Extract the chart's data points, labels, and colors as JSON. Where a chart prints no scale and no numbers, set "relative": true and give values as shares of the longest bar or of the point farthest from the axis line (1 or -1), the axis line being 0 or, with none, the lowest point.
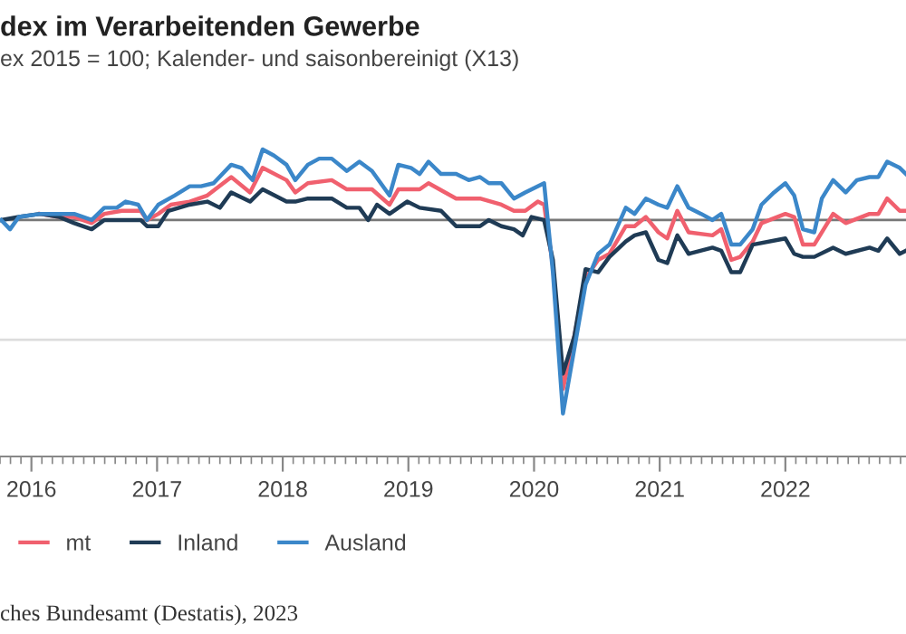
{
  "chart_data": {
    "type": "line",
    "title": "dex im Verarbeitenden Gewerbe",
    "subtitle": "ex 2015 = 100; Kalender- und saisonbereinigt (X13)",
    "relative": true,
    "xlim": [
      2015.75,
      2022.96
    ],
    "xticks": [
      2016,
      2017,
      2018,
      2019,
      2020,
      2021,
      2022
    ],
    "grid": false,
    "legend": "bottom",
    "line_style": "solid",
    "marker": "none",
    "ref_lines": [
      {
        "axis": "y",
        "value": 0.77,
        "color": "#777777"
      },
      {
        "axis": "y",
        "value": 0.38,
        "color": "#dddddd"
      }
    ],
    "annotations": [
      "ches Bundesamt (Destatis), 2023"
    ],
    "series": [
      {
        "name": "mt",
        "color": "#f0606e",
        "x": [
          2016.07,
          2016.22,
          2016.34,
          2016.48,
          2016.58,
          2016.72,
          2016.87,
          2016.92,
          2017.01,
          2017.11,
          2017.26,
          2017.4,
          2017.59,
          2017.74,
          2017.84,
          2018.03,
          2018.1,
          2018.2,
          2018.39,
          2018.51,
          2018.71,
          2018.85,
          2018.92,
          2019.09,
          2019.16,
          2019.38,
          2019.57,
          2019.74,
          2019.84,
          2019.93,
          2020.03,
          2020.08,
          2020.15,
          2020.23,
          2020.32,
          2020.41,
          2020.51,
          2020.6,
          2020.73,
          2020.8,
          2020.89,
          2020.99,
          2021.06,
          2021.14,
          2021.23,
          2021.42,
          2021.49,
          2021.57,
          2021.64,
          2021.74,
          2021.81,
          2022.0,
          2022.07,
          2022.14,
          2022.23,
          2022.38,
          2022.48,
          2022.67,
          2022.74,
          2022.81,
          2022.91,
          2022.96
        ],
        "values": [
          0.79,
          0.78,
          0.78,
          0.76,
          0.79,
          0.8,
          0.8,
          0.77,
          0.79,
          0.82,
          0.83,
          0.85,
          0.91,
          0.86,
          0.94,
          0.9,
          0.86,
          0.89,
          0.9,
          0.87,
          0.87,
          0.82,
          0.87,
          0.87,
          0.89,
          0.84,
          0.84,
          0.82,
          0.8,
          0.8,
          0.83,
          0.82,
          0.62,
          0.22,
          0.39,
          0.58,
          0.64,
          0.66,
          0.75,
          0.75,
          0.78,
          0.73,
          0.71,
          0.8,
          0.73,
          0.72,
          0.74,
          0.64,
          0.65,
          0.7,
          0.76,
          0.79,
          0.78,
          0.69,
          0.69,
          0.79,
          0.76,
          0.79,
          0.79,
          0.84,
          0.8,
          0.8
        ]
      },
      {
        "name": "Inland",
        "color": "#1f3b55",
        "x": [
          2015.76,
          2015.9,
          2016.07,
          2016.22,
          2016.34,
          2016.48,
          2016.58,
          2016.72,
          2016.87,
          2016.92,
          2017.01,
          2017.09,
          2017.26,
          2017.4,
          2017.5,
          2017.59,
          2017.74,
          2017.84,
          2018.03,
          2018.1,
          2018.2,
          2018.39,
          2018.51,
          2018.61,
          2018.68,
          2018.75,
          2018.85,
          2018.99,
          2019.09,
          2019.26,
          2019.38,
          2019.57,
          2019.64,
          2019.74,
          2019.84,
          2019.91,
          2019.98,
          2020.08,
          2020.15,
          2020.23,
          2020.32,
          2020.41,
          2020.51,
          2020.6,
          2020.73,
          2020.8,
          2020.89,
          2020.99,
          2021.06,
          2021.14,
          2021.23,
          2021.42,
          2021.49,
          2021.57,
          2021.64,
          2021.74,
          2022.0,
          2022.07,
          2022.14,
          2022.23,
          2022.38,
          2022.48,
          2022.67,
          2022.74,
          2022.81,
          2022.91,
          2022.96
        ],
        "values": [
          0.77,
          0.78,
          0.79,
          0.78,
          0.76,
          0.74,
          0.77,
          0.77,
          0.77,
          0.75,
          0.75,
          0.8,
          0.82,
          0.83,
          0.81,
          0.86,
          0.83,
          0.87,
          0.83,
          0.83,
          0.84,
          0.84,
          0.81,
          0.81,
          0.77,
          0.82,
          0.79,
          0.83,
          0.81,
          0.8,
          0.75,
          0.75,
          0.77,
          0.75,
          0.74,
          0.72,
          0.78,
          0.77,
          0.64,
          0.27,
          0.39,
          0.61,
          0.6,
          0.65,
          0.7,
          0.72,
          0.73,
          0.64,
          0.63,
          0.72,
          0.66,
          0.68,
          0.67,
          0.6,
          0.6,
          0.69,
          0.71,
          0.66,
          0.65,
          0.65,
          0.68,
          0.66,
          0.68,
          0.67,
          0.71,
          0.66,
          0.67
        ]
      },
      {
        "name": "Ausland",
        "color": "#3b87c9",
        "x": [
          2015.76,
          2015.83,
          2015.9,
          2016.07,
          2016.22,
          2016.34,
          2016.48,
          2016.58,
          2016.68,
          2016.75,
          2016.85,
          2016.92,
          2017.01,
          2017.14,
          2017.26,
          2017.35,
          2017.45,
          2017.59,
          2017.67,
          2017.76,
          2017.84,
          2017.93,
          2018.03,
          2018.1,
          2018.2,
          2018.29,
          2018.39,
          2018.51,
          2018.61,
          2018.71,
          2018.85,
          2018.92,
          2019.02,
          2019.09,
          2019.16,
          2019.26,
          2019.38,
          2019.48,
          2019.57,
          2019.64,
          2019.74,
          2019.84,
          2019.93,
          2020.08,
          2020.15,
          2020.23,
          2020.32,
          2020.41,
          2020.51,
          2020.6,
          2020.73,
          2020.8,
          2020.89,
          2020.99,
          2021.06,
          2021.14,
          2021.23,
          2021.33,
          2021.42,
          2021.49,
          2021.57,
          2021.64,
          2021.74,
          2021.81,
          2021.91,
          2022.0,
          2022.07,
          2022.14,
          2022.23,
          2022.29,
          2022.38,
          2022.48,
          2022.57,
          2022.67,
          2022.74,
          2022.81,
          2022.91,
          2022.96
        ],
        "values": [
          0.77,
          0.74,
          0.78,
          0.79,
          0.79,
          0.79,
          0.77,
          0.81,
          0.81,
          0.83,
          0.82,
          0.77,
          0.82,
          0.85,
          0.88,
          0.88,
          0.89,
          0.95,
          0.94,
          0.9,
          1.0,
          0.98,
          0.95,
          0.9,
          0.95,
          0.97,
          0.97,
          0.93,
          0.96,
          0.93,
          0.85,
          0.95,
          0.94,
          0.92,
          0.96,
          0.92,
          0.92,
          0.9,
          0.91,
          0.89,
          0.89,
          0.84,
          0.86,
          0.89,
          0.6,
          0.14,
          0.35,
          0.56,
          0.66,
          0.69,
          0.81,
          0.79,
          0.84,
          0.82,
          0.81,
          0.88,
          0.81,
          0.79,
          0.77,
          0.79,
          0.69,
          0.69,
          0.74,
          0.82,
          0.86,
          0.89,
          0.85,
          0.74,
          0.73,
          0.84,
          0.9,
          0.86,
          0.9,
          0.91,
          0.91,
          0.96,
          0.94,
          0.92
        ]
      }
    ]
  }
}
